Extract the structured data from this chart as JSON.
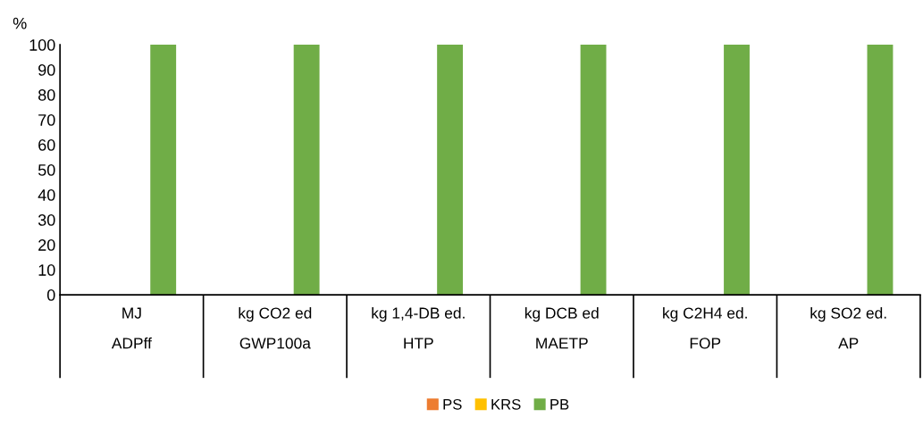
{
  "chart_data": {
    "type": "bar",
    "ylabel": "%",
    "categories": [
      "MJ\nADPff",
      "kg CO2 ed\nGWP100a",
      "kg 1,4-DB ed.\nHTP",
      "kg DCB ed\nMAETP",
      "kg C2H4 ed.\nFOP",
      "kg SO2 ed.\nAP"
    ],
    "series": [
      {
        "name": "PS",
        "color": "#ed7d31",
        "values": [
          0,
          0,
          0,
          0,
          0,
          0
        ]
      },
      {
        "name": "KRS",
        "color": "#ffc000",
        "values": [
          0,
          0,
          0,
          0,
          0,
          0
        ]
      },
      {
        "name": "PB",
        "color": "#70ad47",
        "values": [
          100,
          100,
          100,
          100,
          100,
          100
        ]
      }
    ],
    "ylim": [
      0,
      100
    ],
    "yticks": [
      0,
      10,
      20,
      30,
      40,
      50,
      60,
      70,
      80,
      90,
      100
    ],
    "grid": false,
    "legend": "bottom"
  }
}
